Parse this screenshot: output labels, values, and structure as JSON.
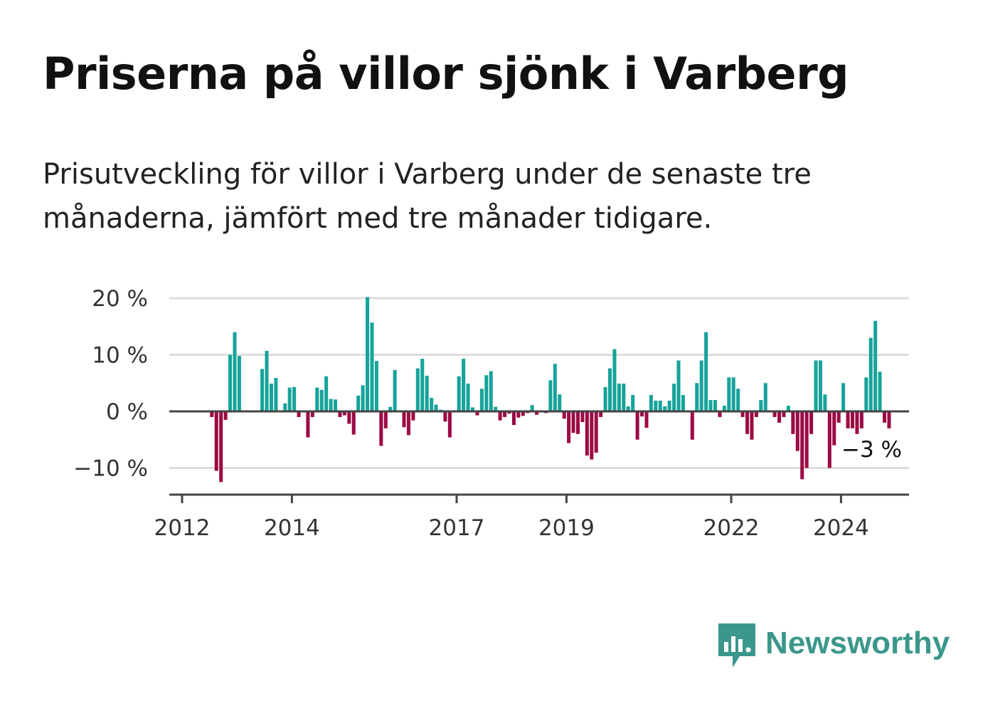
{
  "title": "Priserna på villor sjönk i Varberg",
  "subtitle": "Prisutveckling för villor i Varberg under de senaste tre månaderna, jämfört med tre månader tidigare.",
  "brand": {
    "name": "Newsworthy",
    "icon": "newsworthy-logo-icon"
  },
  "colors": {
    "positive": "#16a39b",
    "negative": "#9c0a44",
    "brand": "#3b978c",
    "grid": "#dddddd",
    "axis": "#444444"
  },
  "chart_data": {
    "type": "bar",
    "ylim": [
      -14.5,
      20
    ],
    "y_ticks": [
      {
        "value": 20,
        "label": "20 %"
      },
      {
        "value": 10,
        "label": "10 %"
      },
      {
        "value": 0,
        "label": "0 %"
      },
      {
        "value": -10,
        "label": "−10 %"
      }
    ],
    "x_ticks": [
      {
        "value": 2012.0,
        "label": "2012"
      },
      {
        "value": 2014.0,
        "label": "2014"
      },
      {
        "value": 2017.0,
        "label": "2017"
      },
      {
        "value": 2019.0,
        "label": "2019"
      },
      {
        "value": 2022.0,
        "label": "2022"
      },
      {
        "value": 2024.0,
        "label": "2024"
      }
    ],
    "start": "2012-03",
    "grid": true,
    "last_value_label": "−3 %",
    "values": [
      0,
      0,
      0,
      0,
      -1,
      -10.5,
      -12.5,
      -1.5,
      10,
      14,
      9.8,
      0,
      0,
      0,
      0,
      7.5,
      10.7,
      4.9,
      5.9,
      0,
      1.4,
      4.2,
      4.3,
      -1,
      0,
      -4.6,
      -1,
      4.2,
      3.8,
      6.2,
      2.2,
      2.1,
      -1,
      -0.7,
      -2.2,
      -4.1,
      2.8,
      4.6,
      20.2,
      15.7,
      8.9,
      -6.1,
      -3,
      0.8,
      7.3,
      0,
      -2.8,
      -4.2,
      -1.6,
      7.6,
      9.3,
      6.3,
      2.4,
      1.2,
      0.3,
      -1.8,
      -4.6,
      0,
      6.2,
      9.3,
      4.9,
      0.7,
      -0.7,
      4,
      6.4,
      7.1,
      0.8,
      -1.6,
      -1,
      -0.4,
      -2.4,
      -1.1,
      -0.8,
      -0.3,
      1.1,
      -0.6,
      0,
      -0.3,
      5.5,
      8.4,
      3,
      -1.3,
      -5.6,
      -3.8,
      -4,
      -1.9,
      -7.8,
      -8.5,
      -7.3,
      -1,
      4.3,
      7.6,
      11,
      4.9,
      4.9,
      0.9,
      2.9,
      -5,
      -0.9,
      -2.9,
      2.9,
      1.9,
      1.9,
      0.9,
      1.9,
      4.9,
      9,
      2.9,
      0,
      -5,
      5,
      9,
      14,
      2,
      2,
      -1,
      1,
      6,
      6,
      4,
      -1,
      -4,
      -5,
      -1,
      2,
      5,
      0,
      -1,
      -2,
      -1,
      1,
      -4,
      -7,
      -12,
      -10,
      -4,
      9,
      9,
      3,
      -10,
      -6,
      -2,
      5,
      -3,
      -3,
      -4,
      -3,
      6,
      13,
      16,
      7,
      -2,
      -3
    ]
  }
}
